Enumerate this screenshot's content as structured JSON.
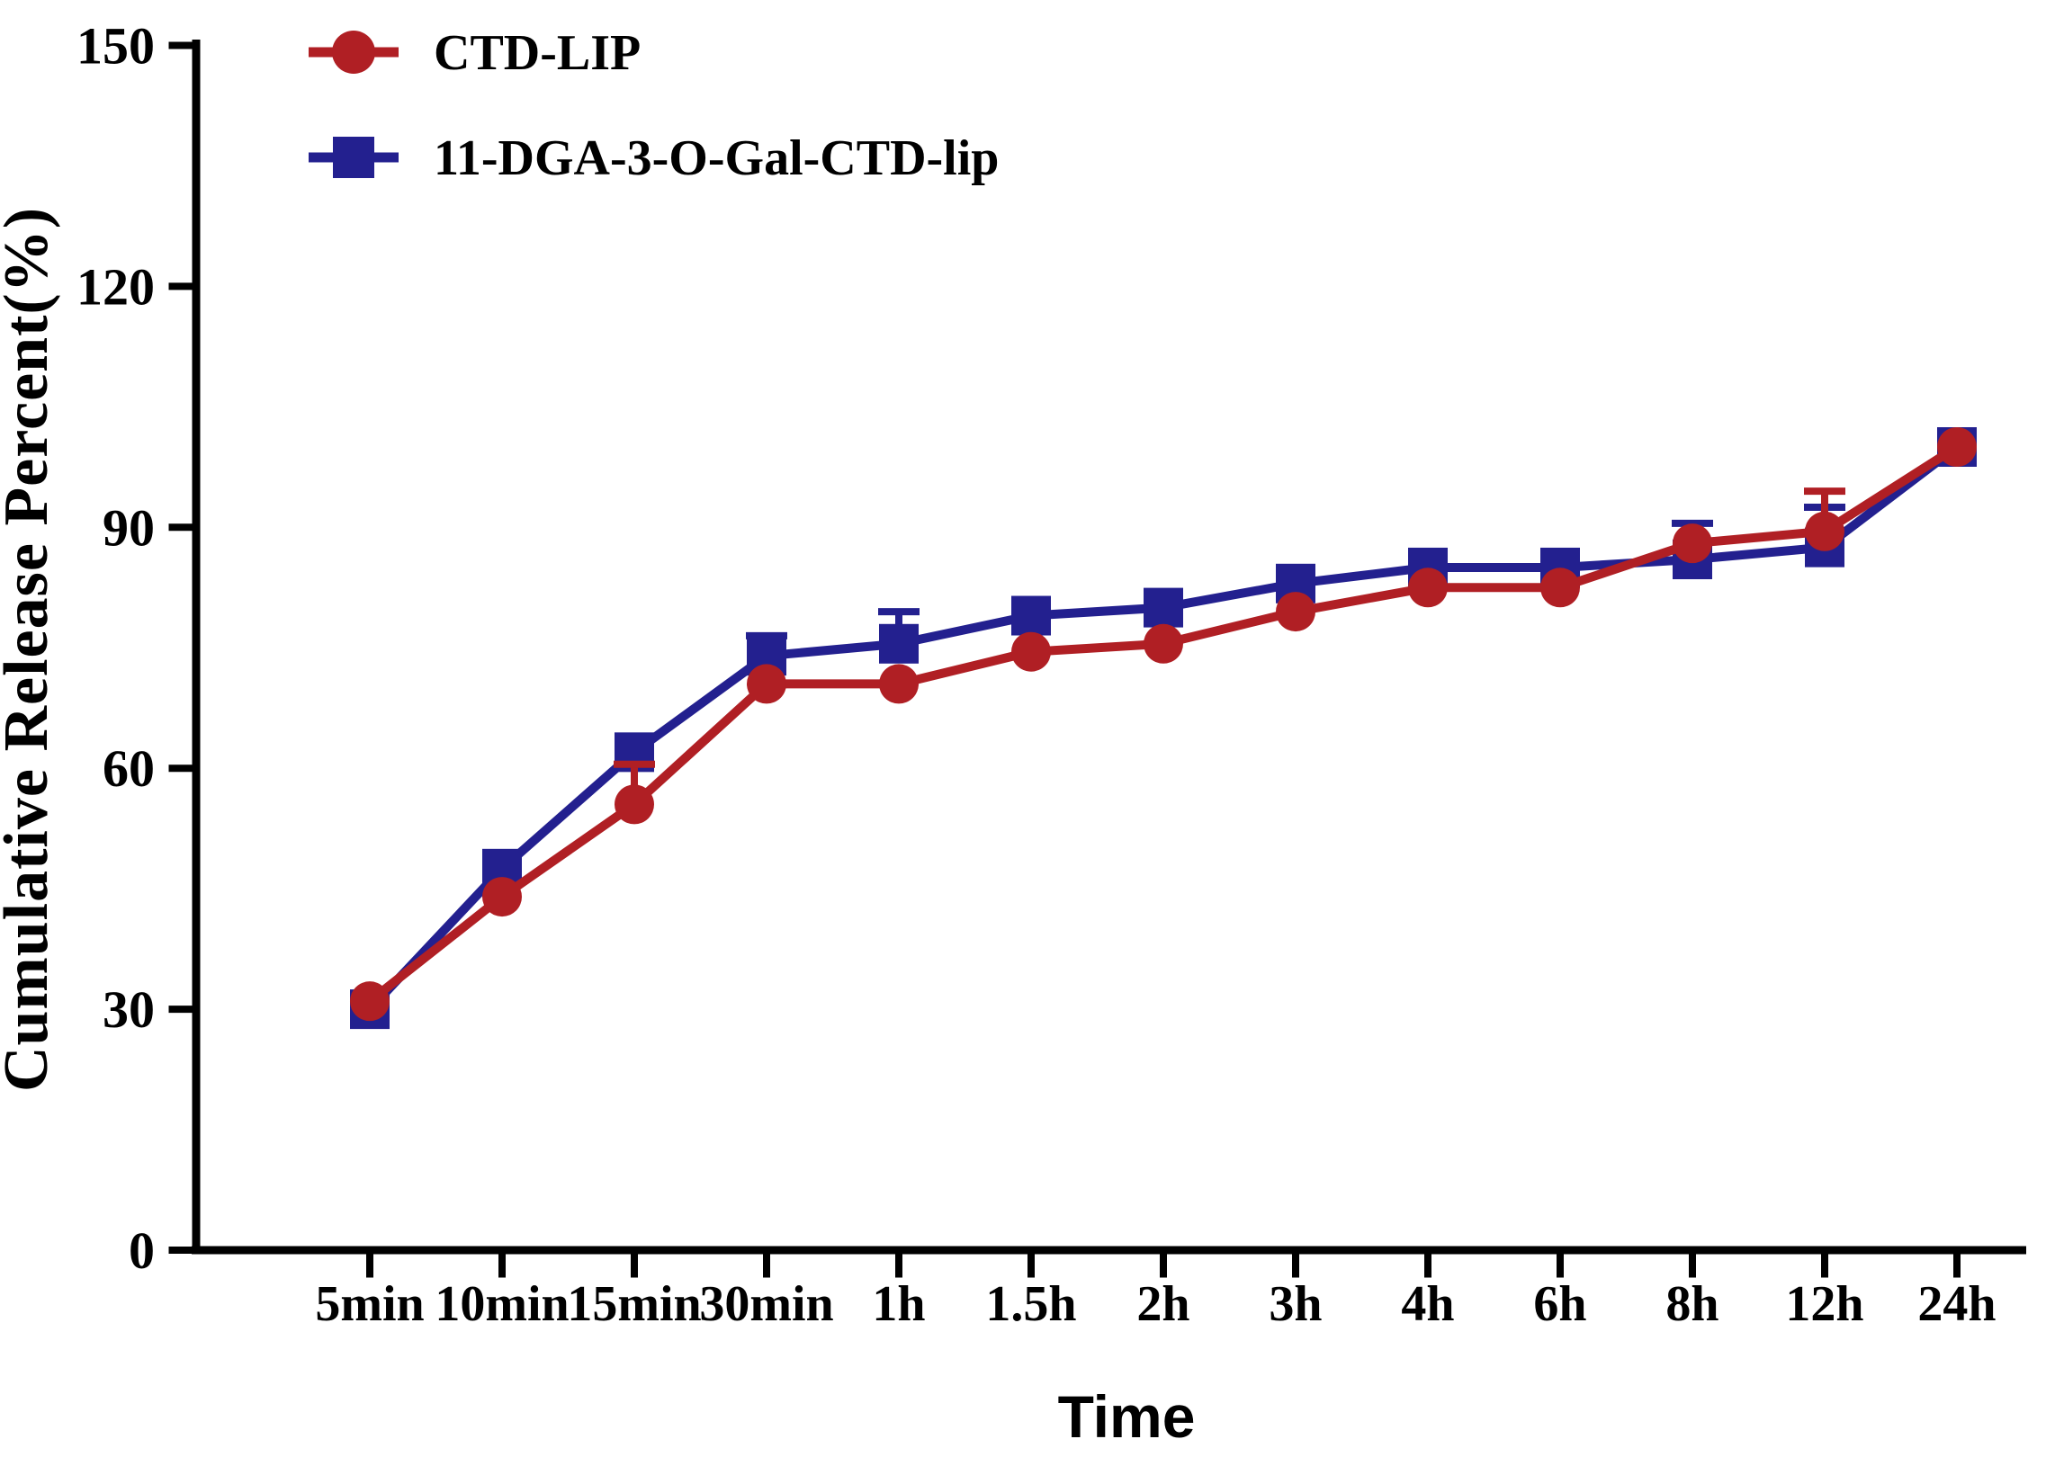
{
  "chart_data": {
    "type": "line",
    "title": "",
    "xlabel": "Time",
    "ylabel": "Cumulative Release Percent(%)",
    "ylim": [
      0,
      150
    ],
    "yticks": [
      0,
      30,
      60,
      90,
      120,
      150
    ],
    "grid": false,
    "legend_position": "top-left",
    "background": "#ffffff",
    "axis_color": "#000000",
    "categories": [
      "5min",
      "10min",
      "15min",
      "30min",
      "1h",
      "1.5h",
      "2h",
      "3h",
      "4h",
      "6h",
      "8h",
      "12h",
      "24h"
    ],
    "series": [
      {
        "name": "11-DGA-3-O-Gal-CTD-lip",
        "color": "#23208F",
        "marker": "square",
        "values": [
          30,
          47.5,
          62,
          74,
          75.5,
          79,
          80,
          83,
          85,
          85,
          86,
          87.5,
          100
        ],
        "err_plus": [
          0,
          0,
          0,
          2.5,
          4,
          0,
          0,
          0,
          0,
          0,
          4.5,
          5,
          0
        ]
      },
      {
        "name": "CTD-LIP",
        "color": "#B01F24",
        "marker": "circle",
        "values": [
          31,
          44,
          55.5,
          70.5,
          70.5,
          74.5,
          75.5,
          79.5,
          82.5,
          82.5,
          88,
          89.5,
          100
        ],
        "err_plus": [
          0,
          0,
          5,
          0,
          0,
          0,
          0,
          0,
          0,
          0,
          0,
          5,
          0
        ]
      }
    ],
    "legend_order": [
      "CTD-LIP",
      "11-DGA-3-O-Gal-CTD-lip"
    ]
  }
}
